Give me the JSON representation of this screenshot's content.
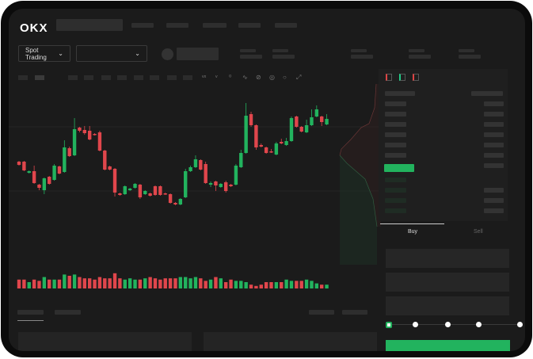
{
  "header": {
    "logo": "OKX",
    "market_selector": "Spot Trading",
    "pair_selector": ""
  },
  "orderbook": {
    "tabs": [
      "buy-sell-view",
      "buy-only-view",
      "sell-only-view"
    ]
  },
  "trade_form": {
    "buy_label": "Buy",
    "sell_label": "Sell",
    "active_tab": "Buy",
    "slider_percent": 0
  },
  "colors": {
    "up": "#22b35e",
    "down": "#e0464c",
    "background": "#1b1b1b"
  },
  "chart_data": {
    "type": "candlestick",
    "ohlc": [
      [
        67,
        63,
        68,
        62
      ],
      [
        67,
        56,
        68,
        55
      ],
      [
        53,
        55,
        56,
        52
      ],
      [
        55,
        40,
        62,
        39
      ],
      [
        38,
        34,
        39,
        31
      ],
      [
        31,
        46,
        47,
        26
      ],
      [
        48,
        39,
        49,
        38
      ],
      [
        44,
        62,
        64,
        43
      ],
      [
        61,
        52,
        62,
        51
      ],
      [
        54,
        85,
        94,
        53
      ],
      [
        84,
        74,
        86,
        73
      ],
      [
        75,
        108,
        122,
        74
      ],
      [
        110,
        106,
        111,
        104
      ],
      [
        107,
        103,
        112,
        101
      ],
      [
        106,
        95,
        112,
        94
      ],
      [
        102,
        101,
        103,
        100
      ],
      [
        104,
        81,
        106,
        80
      ],
      [
        81,
        57,
        82,
        56
      ],
      [
        61,
        57,
        62,
        56
      ],
      [
        58,
        28,
        59,
        23
      ],
      [
        27,
        25,
        28,
        24
      ],
      [
        26,
        36,
        37,
        25
      ],
      [
        31,
        33,
        34,
        30
      ],
      [
        34,
        39,
        40,
        33
      ],
      [
        38,
        22,
        39,
        20
      ],
      [
        26,
        30,
        31,
        25
      ],
      [
        27,
        24,
        28,
        23
      ],
      [
        36,
        25,
        37,
        24
      ],
      [
        36,
        25,
        37,
        24
      ],
      [
        27,
        26,
        28,
        25
      ],
      [
        26,
        15,
        27,
        14
      ],
      [
        15,
        13,
        16,
        12
      ],
      [
        13,
        20,
        21,
        12
      ],
      [
        22,
        55,
        58,
        21
      ],
      [
        55,
        60,
        62,
        54
      ],
      [
        60,
        70,
        75,
        59
      ],
      [
        69,
        57,
        70,
        56
      ],
      [
        64,
        40,
        67,
        39
      ],
      [
        38,
        40,
        42,
        35
      ],
      [
        42,
        37,
        43,
        30
      ],
      [
        35,
        39,
        40,
        34
      ],
      [
        41,
        30,
        43,
        28
      ],
      [
        38,
        36,
        39,
        35
      ],
      [
        38,
        62,
        64,
        37
      ],
      [
        60,
        78,
        82,
        59
      ],
      [
        78,
        125,
        141,
        77
      ],
      [
        127,
        113,
        130,
        111
      ],
      [
        113,
        85,
        114,
        82
      ],
      [
        88,
        86,
        90,
        85
      ],
      [
        85,
        78,
        86,
        77
      ],
      [
        80,
        79,
        83,
        78
      ],
      [
        76,
        90,
        92,
        75
      ],
      [
        92,
        90,
        96,
        89
      ],
      [
        88,
        93,
        97,
        87
      ],
      [
        93,
        122,
        124,
        92
      ],
      [
        124,
        111,
        125,
        110
      ],
      [
        111,
        105,
        112,
        104
      ],
      [
        104,
        113,
        120,
        103
      ],
      [
        113,
        123,
        133,
        112
      ],
      [
        124,
        133,
        138,
        123
      ],
      [
        124,
        117,
        125,
        112
      ],
      [
        114,
        121,
        127,
        113
      ]
    ],
    "volume": [
      7,
      7,
      5,
      7,
      6,
      9,
      7,
      7,
      7,
      11,
      10,
      11,
      9,
      8,
      8,
      7,
      9,
      8,
      8,
      12,
      8,
      7,
      8,
      7,
      7,
      8,
      9,
      8,
      7,
      8,
      8,
      8,
      9,
      9,
      8,
      9,
      8,
      6,
      7,
      9,
      8,
      5,
      7,
      6,
      6,
      5,
      3,
      2,
      3,
      5,
      5,
      5,
      5,
      7,
      6,
      6,
      6,
      7,
      6,
      4,
      3,
      3
    ]
  }
}
